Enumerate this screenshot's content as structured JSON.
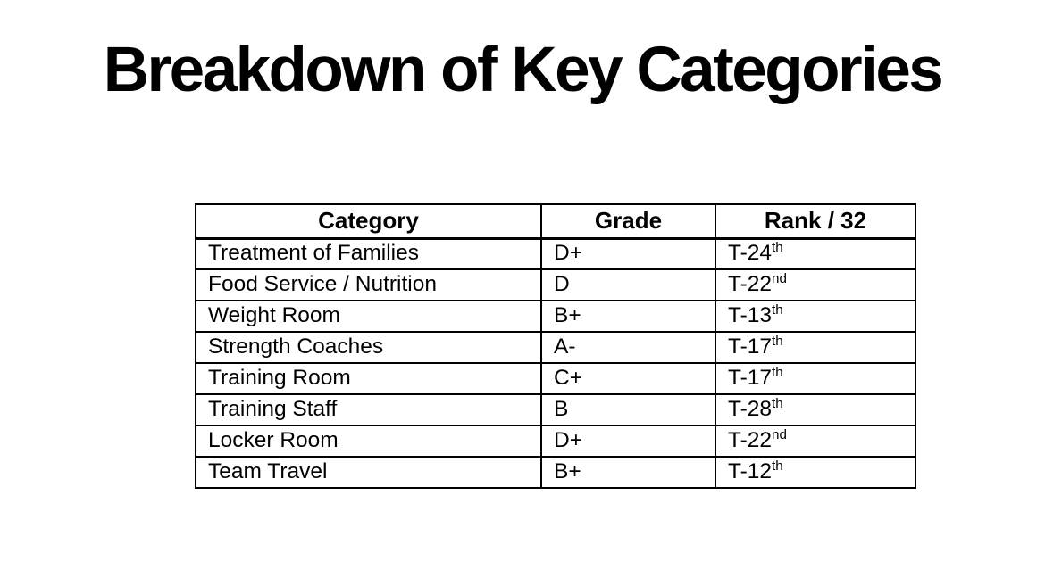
{
  "page": {
    "background_color": "#ffffff",
    "text_color": "#000000"
  },
  "title": "Breakdown of Key Categories",
  "table": {
    "columns": [
      "Category",
      "Grade",
      "Rank / 32"
    ],
    "rows": [
      {
        "category": "Treatment of Families",
        "grade": "D+",
        "rank_base": "T-24",
        "rank_suffix": "th"
      },
      {
        "category": "Food Service / Nutrition",
        "grade": "D",
        "rank_base": "T-22",
        "rank_suffix": "nd"
      },
      {
        "category": "Weight Room",
        "grade": "B+",
        "rank_base": "T-13",
        "rank_suffix": "th"
      },
      {
        "category": "Strength Coaches",
        "grade": "A-",
        "rank_base": "T-17",
        "rank_suffix": "th"
      },
      {
        "category": "Training Room",
        "grade": "C+",
        "rank_base": "T-17",
        "rank_suffix": "th"
      },
      {
        "category": "Training Staff",
        "grade": "B",
        "rank_base": "T-28",
        "rank_suffix": "th"
      },
      {
        "category": "Locker Room",
        "grade": "D+",
        "rank_base": "T-22",
        "rank_suffix": "nd"
      },
      {
        "category": "Team Travel",
        "grade": "B+",
        "rank_base": "T-12",
        "rank_suffix": "th"
      }
    ]
  }
}
